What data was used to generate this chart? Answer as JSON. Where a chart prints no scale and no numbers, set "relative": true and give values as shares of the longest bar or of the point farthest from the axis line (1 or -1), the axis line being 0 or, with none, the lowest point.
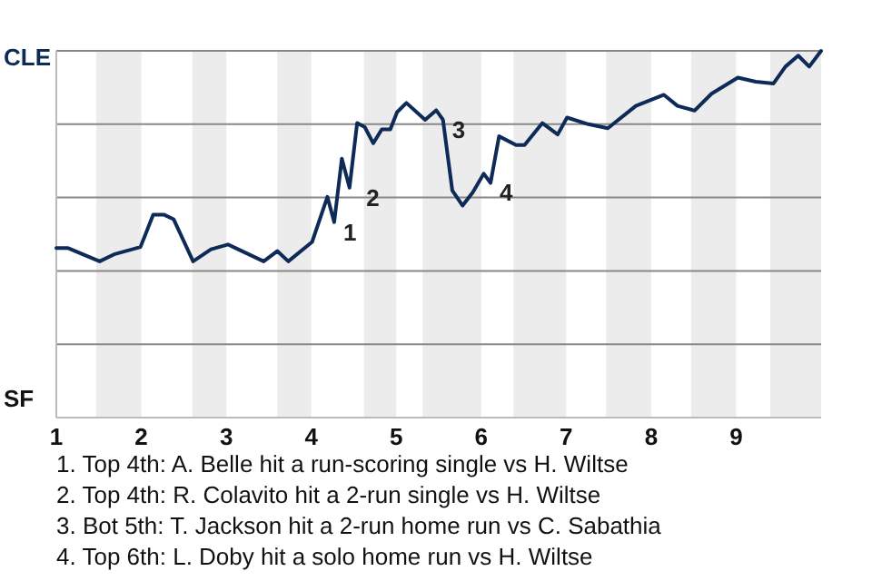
{
  "chart_data": {
    "type": "line",
    "relative": true,
    "x": [
      1,
      1.14,
      1.51,
      1.69,
      1.99,
      2.14,
      2.27,
      2.38,
      2.61,
      2.82,
      3.02,
      3.44,
      3.6,
      3.73,
      4.01,
      4.19,
      4.27,
      4.36,
      4.45,
      4.54,
      4.63,
      4.73,
      4.83,
      4.93,
      5.01,
      5.12,
      5.34,
      5.47,
      5.55,
      5.66,
      5.78,
      5.9,
      6.03,
      6.11,
      6.21,
      6.41,
      6.51,
      6.72,
      6.9,
      7.01,
      7.26,
      7.49,
      7.82,
      8.15,
      8.31,
      8.51,
      8.71,
      9.02,
      9.23,
      9.44,
      9.58,
      9.73,
      9.86,
      10
    ],
    "series": [
      {
        "color": "#0d2b56",
        "values": [
          0.462,
          0.462,
          0.426,
          0.446,
          0.465,
          0.553,
          0.553,
          0.541,
          0.426,
          0.459,
          0.472,
          0.426,
          0.454,
          0.426,
          0.479,
          0.602,
          0.533,
          0.706,
          0.627,
          0.803,
          0.792,
          0.748,
          0.786,
          0.786,
          0.833,
          0.858,
          0.812,
          0.838,
          0.812,
          0.619,
          0.578,
          0.614,
          0.665,
          0.64,
          0.767,
          0.743,
          0.743,
          0.803,
          0.772,
          0.818,
          0.8,
          0.789,
          0.85,
          0.88,
          0.85,
          0.837,
          0.883,
          0.927,
          0.916,
          0.911,
          0.957,
          0.987,
          0.957,
          1
        ]
      }
    ],
    "xlim": [
      1,
      10
    ],
    "xticks": [
      1,
      2,
      3,
      4,
      5,
      6,
      7,
      8,
      9
    ],
    "grid": "y",
    "bands": [
      {
        "axis": "x",
        "from": 1.47,
        "to": 2,
        "color": "#ececec"
      },
      {
        "axis": "x",
        "from": 2.6,
        "to": 3,
        "color": "#ececec"
      },
      {
        "axis": "x",
        "from": 3.6,
        "to": 4,
        "color": "#ececec"
      },
      {
        "axis": "x",
        "from": 4.62,
        "to": 5,
        "color": "#ececec"
      },
      {
        "axis": "x",
        "from": 5.31,
        "to": 6,
        "color": "#ececec"
      },
      {
        "axis": "x",
        "from": 6.38,
        "to": 7,
        "color": "#ececec"
      },
      {
        "axis": "x",
        "from": 7.47,
        "to": 8,
        "color": "#ececec"
      },
      {
        "axis": "x",
        "from": 8.47,
        "to": 9,
        "color": "#ececec"
      },
      {
        "axis": "x",
        "from": 9.4,
        "to": 10,
        "color": "#ececec"
      }
    ],
    "annotations": [
      "CLE",
      "SF",
      {
        "text": "1",
        "x": 4.27,
        "y": 0.533
      },
      {
        "text": "2",
        "x": 4.54,
        "y": 0.627
      },
      {
        "text": "3",
        "x": 5.55,
        "y": 0.812
      },
      {
        "text": "4",
        "x": 6.11,
        "y": 0.64
      },
      "1. Top 4th: A. Belle hit a run-scoring single vs H. Wiltse",
      "2. Top 4th: R. Colavito hit a 2-run single vs H. Wiltse",
      "3. Bot 5th: T. Jackson hit a 2-run home run vs C. Sabathia",
      "4. Top 6th: L. Doby hit a solo home run vs H. Wiltse"
    ]
  }
}
